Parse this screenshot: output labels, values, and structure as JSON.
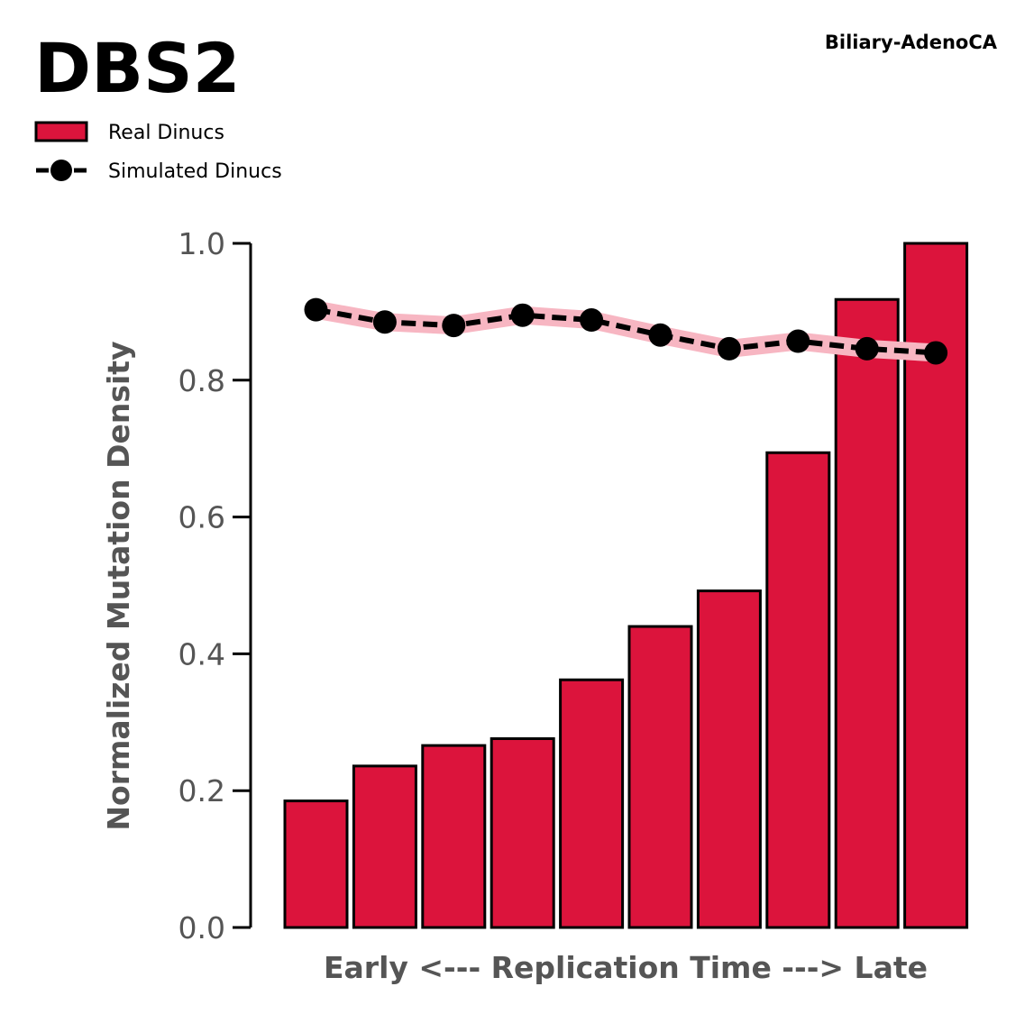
{
  "chart_data": {
    "type": "bar",
    "title": "DBS2",
    "subtitle": "Biliary-AdenoCA",
    "xlabel": "Early <--- Replication Time ---> Late",
    "ylabel": "Normalized Mutation Density",
    "ylim": [
      0,
      1.0
    ],
    "yticks": [
      "0.0",
      "0.2",
      "0.4",
      "0.6",
      "0.8",
      "1.0"
    ],
    "grid": false,
    "legend": {
      "placement": "top-left",
      "entries": [
        "Real Dinucs",
        "Simulated Dinucs"
      ]
    },
    "series": [
      {
        "name": "Real Dinucs",
        "kind": "bar",
        "color": "#dc143c",
        "edgecolor": "#000000",
        "values": [
          0.185,
          0.236,
          0.266,
          0.276,
          0.362,
          0.44,
          0.492,
          0.694,
          0.918,
          1.0
        ]
      },
      {
        "name": "Simulated Dinucs",
        "kind": "line",
        "color": "#000000",
        "band_color": "#f7b6c2",
        "linestyle": "dashed",
        "marker": "circle",
        "values": [
          0.903,
          0.885,
          0.88,
          0.895,
          0.888,
          0.866,
          0.846,
          0.857,
          0.846,
          0.84
        ]
      }
    ]
  }
}
